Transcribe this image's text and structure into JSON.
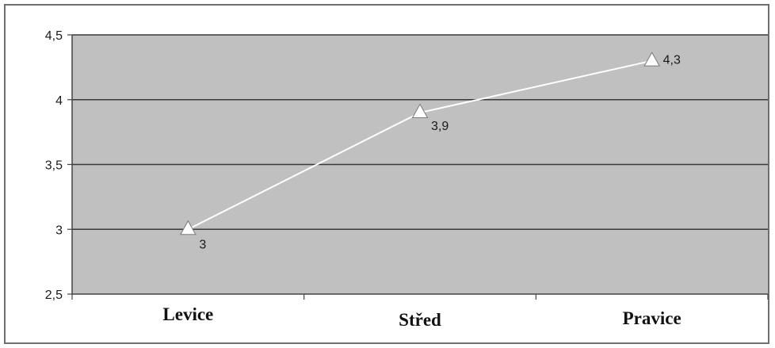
{
  "chart_data": {
    "type": "line",
    "title": "",
    "xlabel": "",
    "ylabel": "",
    "categories": [
      "Levice",
      "Střed",
      "Pravice"
    ],
    "series": [
      {
        "values": [
          3,
          3.9,
          4.3
        ],
        "data_labels": [
          "3",
          "3,9",
          "4,3"
        ],
        "marker": "triangle",
        "color": "#ffffff"
      }
    ],
    "ylim": [
      2.5,
      4.5
    ],
    "y_ticks": [
      2.5,
      3,
      3.5,
      4,
      4.5
    ],
    "y_tick_labels": [
      "2,5",
      "3",
      "3,5",
      "4",
      "4,5"
    ],
    "grid": true,
    "legend": "none",
    "colors": {
      "plot_background": "#c0c0c0",
      "gridline": "#3a3a3a",
      "line": "#ffffff",
      "marker_fill": "#ffffff",
      "marker_stroke": "#7a7a7a",
      "frame": "#6e6e6e"
    }
  }
}
